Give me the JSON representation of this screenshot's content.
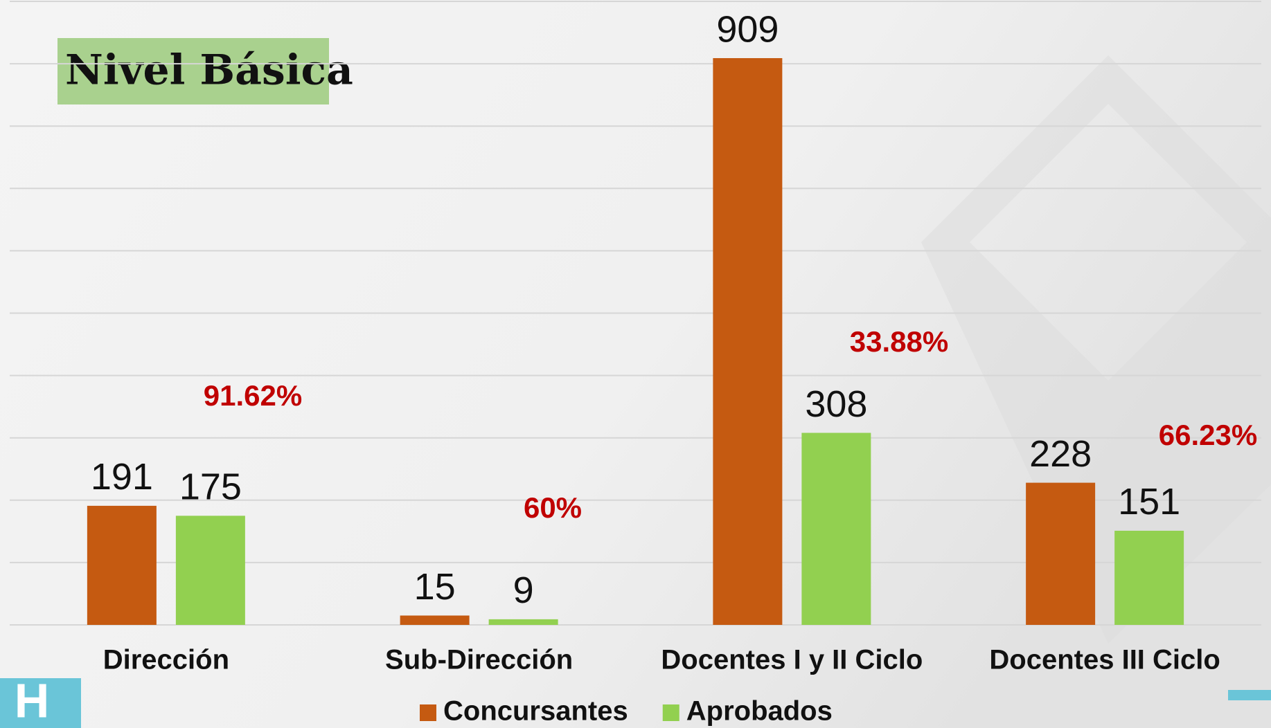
{
  "chart_data": {
    "type": "bar",
    "title": "Nivel Básica",
    "categories": [
      "Dirección",
      "Sub-Dirección",
      "Docentes I y II Ciclo",
      "Docentes III Ciclo"
    ],
    "series": [
      {
        "name": "Concursantes",
        "color": "#c55a11",
        "values": [
          191,
          15,
          909,
          228
        ]
      },
      {
        "name": "Aprobados",
        "color": "#92d050",
        "values": [
          175,
          9,
          308,
          151
        ]
      }
    ],
    "annotations": [
      "91.62%",
      "60%",
      "33.88%",
      "66.23%"
    ],
    "ylim": [
      0,
      1000
    ],
    "yticks": [
      0,
      100,
      200,
      300,
      400,
      500,
      600,
      700,
      800,
      900,
      1000
    ],
    "grid": true,
    "legend": "bottom"
  }
}
